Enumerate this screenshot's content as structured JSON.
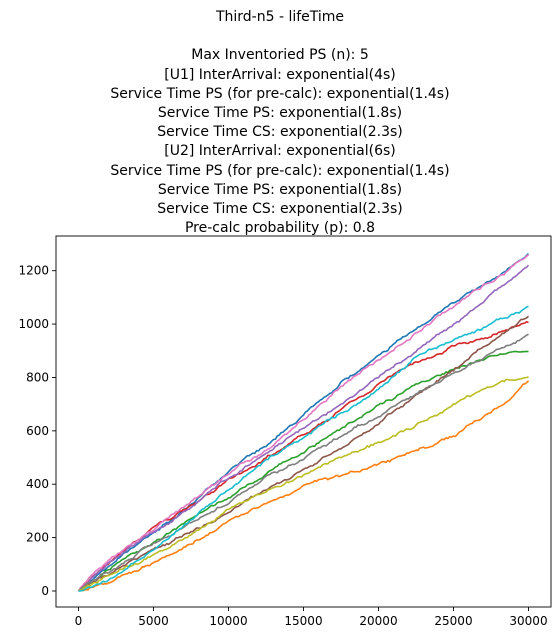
{
  "chart_data": {
    "type": "line",
    "title_lines": [
      "Third-n5 - lifeTime",
      "",
      "Max Inventoried PS (n): 5",
      "[U1] InterArrival: exponential(4s)",
      "Service Time PS (for pre-calc): exponential(1.4s)",
      "Service Time PS: exponential(1.8s)",
      "Service Time CS: exponential(2.3s)",
      "[U2] InterArrival: exponential(6s)",
      "Service Time PS (for pre-calc): exponential(1.4s)",
      "Service Time PS: exponential(1.8s)",
      "Service Time CS: exponential(2.3s)",
      "Pre-calc probability (p): 0.8"
    ],
    "xlabel": "",
    "ylabel": "",
    "xlim": [
      -1500,
      31500
    ],
    "ylim": [
      -60,
      1330
    ],
    "x_ticks": [
      0,
      5000,
      10000,
      15000,
      20000,
      25000,
      30000
    ],
    "y_ticks": [
      0,
      200,
      400,
      600,
      800,
      1000,
      1200
    ],
    "grid": false,
    "legend": "none",
    "x": [
      0,
      2500,
      5000,
      7500,
      10000,
      12500,
      15000,
      17500,
      20000,
      22500,
      25000,
      27500,
      30000
    ],
    "series": [
      {
        "color": "#1f77b4",
        "values": [
          0,
          115,
          220,
          330,
          440,
          545,
          660,
          780,
          880,
          985,
          1080,
          1170,
          1270
        ]
      },
      {
        "color": "#ff7f0e",
        "values": [
          0,
          40,
          110,
          180,
          260,
          330,
          395,
          430,
          480,
          520,
          580,
          670,
          790
        ]
      },
      {
        "color": "#2ca02c",
        "values": [
          0,
          95,
          180,
          270,
          350,
          440,
          520,
          610,
          700,
          770,
          830,
          880,
          910
        ]
      },
      {
        "color": "#d62728",
        "values": [
          0,
          130,
          230,
          320,
          420,
          500,
          580,
          680,
          780,
          860,
          910,
          960,
          1010
        ]
      },
      {
        "color": "#9467bd",
        "values": [
          0,
          120,
          215,
          315,
          420,
          520,
          610,
          700,
          800,
          900,
          1000,
          1110,
          1220
        ]
      },
      {
        "color": "#8c564b",
        "values": [
          0,
          75,
          150,
          220,
          295,
          375,
          455,
          540,
          630,
          730,
          830,
          930,
          1030
        ]
      },
      {
        "color": "#e377c2",
        "values": [
          0,
          130,
          230,
          330,
          430,
          530,
          640,
          760,
          860,
          970,
          1070,
          1160,
          1260
        ]
      },
      {
        "color": "#7f7f7f",
        "values": [
          0,
          90,
          175,
          260,
          340,
          420,
          500,
          580,
          660,
          740,
          820,
          890,
          960
        ]
      },
      {
        "color": "#bcbd22",
        "values": [
          0,
          60,
          130,
          215,
          300,
          370,
          440,
          510,
          560,
          620,
          700,
          770,
          810
        ]
      },
      {
        "color": "#17becf",
        "values": [
          0,
          55,
          150,
          260,
          380,
          490,
          580,
          660,
          760,
          880,
          940,
          1000,
          1070
        ]
      }
    ]
  }
}
